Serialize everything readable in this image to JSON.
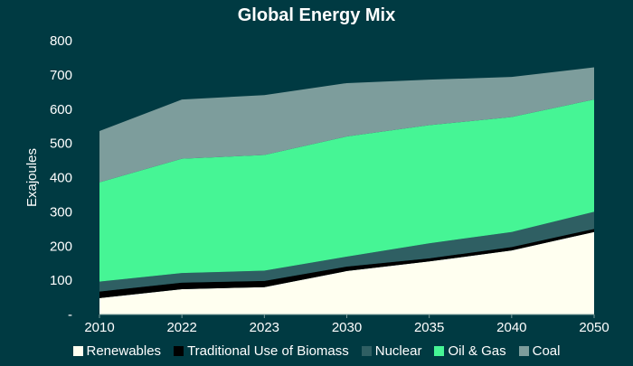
{
  "chart_data": {
    "type": "area",
    "stacked": true,
    "title": "Global Energy Mix",
    "ylabel": "Exajoules",
    "xlabel": "",
    "categories": [
      "2010",
      "2022",
      "2023",
      "2030",
      "2035",
      "2040",
      "2050"
    ],
    "ylim": [
      0,
      800
    ],
    "yticks": [
      0,
      100,
      200,
      300,
      400,
      500,
      600,
      700,
      800
    ],
    "ytick_labels": [
      "-",
      "100",
      "200",
      "300",
      "400",
      "500",
      "600",
      "700",
      "800"
    ],
    "grid": false,
    "legend_position": "bottom",
    "series": [
      {
        "name": "Renewables",
        "color": "#fffff0",
        "values": [
          48,
          74,
          80,
          127,
          155,
          187,
          241
        ]
      },
      {
        "name": "Traditional Use of Biomass",
        "color": "#000000",
        "values": [
          19,
          19,
          18,
          13,
          9,
          10,
          9
        ]
      },
      {
        "name": "Nuclear",
        "color": "#2f5f63",
        "values": [
          29,
          28,
          30,
          29,
          44,
          44,
          50
        ]
      },
      {
        "name": "Oil & Gas",
        "color": "#46f595",
        "values": [
          290,
          334,
          338,
          351,
          345,
          336,
          328
        ]
      },
      {
        "name": "Coal",
        "color": "#7d9d9c",
        "values": [
          150,
          173,
          175,
          156,
          133,
          117,
          94
        ]
      }
    ]
  },
  "colors": {
    "background": "#003a42"
  }
}
